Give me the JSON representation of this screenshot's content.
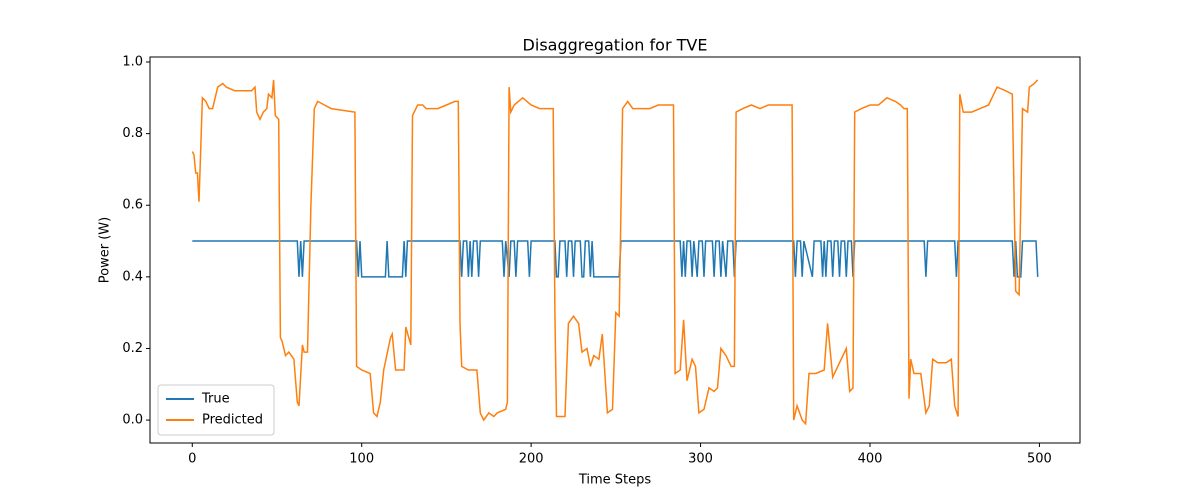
{
  "chart_data": {
    "type": "line",
    "title": "Disaggregation for TVE",
    "x_label": "Time Steps",
    "y_label": "Power (W)",
    "xlim": [
      -24.95,
      523.95
    ],
    "ylim": [
      -0.064,
      1.014
    ],
    "xticks": [
      0,
      100,
      200,
      300,
      400,
      500
    ],
    "yticks": [
      {
        "value": 0,
        "label": "0.0"
      },
      0.2,
      0.4,
      0.6,
      0.8,
      {
        "value": 1,
        "label": "1.0"
      }
    ],
    "legend_position": "lower left",
    "series": [
      {
        "name": "True",
        "color": "#1f77b4",
        "x": [
          0,
          62,
          63,
          64,
          65,
          66,
          97,
          98,
          99,
          100,
          114,
          115,
          116,
          124,
          125,
          126,
          127,
          158,
          159,
          160,
          162,
          163,
          164,
          165,
          166,
          168,
          169,
          170,
          183,
          184,
          185,
          187,
          188,
          190,
          191,
          192,
          198,
          199,
          200,
          214,
          215,
          216,
          217,
          220,
          221,
          222,
          224,
          225,
          226,
          229,
          230,
          231,
          232,
          234,
          235,
          236,
          237,
          252,
          253,
          288,
          289,
          290,
          291,
          292,
          294,
          295,
          296,
          298,
          299,
          301,
          302,
          303,
          307,
          308,
          309,
          311,
          312,
          313,
          315,
          316,
          319,
          320,
          321,
          355,
          356,
          357,
          359,
          360,
          361,
          366,
          367,
          371,
          372,
          373,
          374,
          375,
          377,
          378,
          379,
          381,
          382,
          383,
          385,
          386,
          387,
          389,
          390,
          391,
          432,
          433,
          434,
          450,
          451,
          452,
          484,
          485,
          486,
          487,
          489,
          490,
          498,
          499
        ],
        "values": [
          0.5,
          0.5,
          0.4,
          0.5,
          0.4,
          0.5,
          0.5,
          0.4,
          0.5,
          0.4,
          0.4,
          0.5,
          0.4,
          0.4,
          0.5,
          0.4,
          0.5,
          0.5,
          0.4,
          0.5,
          0.5,
          0.4,
          0.5,
          0.4,
          0.5,
          0.5,
          0.4,
          0.5,
          0.5,
          0.4,
          0.5,
          0.4,
          0.5,
          0.5,
          0.4,
          0.5,
          0.5,
          0.4,
          0.5,
          0.5,
          0.4,
          0.4,
          0.5,
          0.5,
          0.4,
          0.5,
          0.5,
          0.4,
          0.5,
          0.5,
          0.4,
          0.4,
          0.5,
          0.5,
          0.4,
          0.5,
          0.4,
          0.4,
          0.5,
          0.5,
          0.4,
          0.5,
          0.4,
          0.5,
          0.5,
          0.4,
          0.5,
          0.4,
          0.5,
          0.5,
          0.4,
          0.5,
          0.5,
          0.4,
          0.5,
          0.5,
          0.4,
          0.5,
          0.4,
          0.5,
          0.5,
          0.4,
          0.5,
          0.5,
          0.4,
          0.5,
          0.5,
          0.4,
          0.5,
          0.4,
          0.5,
          0.5,
          0.4,
          0.5,
          0.4,
          0.5,
          0.5,
          0.4,
          0.5,
          0.5,
          0.4,
          0.5,
          0.5,
          0.4,
          0.5,
          0.5,
          0.4,
          0.5,
          0.5,
          0.4,
          0.5,
          0.5,
          0.4,
          0.5,
          0.5,
          0.4,
          0.5,
          0.4,
          0.4,
          0.5,
          0.5,
          0.4
        ]
      },
      {
        "name": "Predicted",
        "color": "#ff7f0e",
        "x": [
          0,
          1,
          2,
          3,
          4,
          6,
          8,
          10,
          12,
          15,
          18,
          20,
          25,
          30,
          35,
          37,
          38,
          40,
          42,
          44,
          45,
          47,
          48,
          49,
          51,
          52,
          53,
          55,
          57,
          60,
          62,
          63,
          65,
          66,
          68,
          70,
          72,
          74,
          78,
          82,
          96,
          97,
          100,
          105,
          107,
          109,
          111,
          113,
          117,
          118,
          120,
          125,
          126,
          129,
          130,
          133,
          136,
          138,
          145,
          150,
          155,
          157,
          158,
          159,
          163,
          168,
          170,
          172,
          175,
          178,
          180,
          185,
          186,
          187,
          188,
          190,
          195,
          200,
          205,
          213,
          214,
          215,
          220,
          222,
          225,
          228,
          230,
          233,
          235,
          237,
          240,
          242,
          245,
          248,
          250,
          252,
          254,
          257,
          260,
          270,
          275,
          284,
          285,
          288,
          290,
          292,
          295,
          297,
          299,
          302,
          305,
          308,
          310,
          312,
          315,
          318,
          320,
          321,
          325,
          330,
          335,
          340,
          345,
          354,
          355,
          357,
          360,
          362,
          364,
          368,
          373,
          375,
          378,
          382,
          386,
          388,
          390,
          391,
          395,
          400,
          405,
          410,
          415,
          418,
          420,
          422,
          423,
          424,
          426,
          430,
          433,
          435,
          437,
          440,
          445,
          448,
          450,
          452,
          453,
          455,
          460,
          465,
          470,
          475,
          480,
          484,
          486,
          488,
          490,
          493,
          494,
          497,
          499
        ],
        "values": [
          0.75,
          0.74,
          0.69,
          0.69,
          0.61,
          0.9,
          0.89,
          0.87,
          0.87,
          0.93,
          0.94,
          0.93,
          0.92,
          0.92,
          0.92,
          0.93,
          0.86,
          0.84,
          0.86,
          0.87,
          0.91,
          0.9,
          0.95,
          0.85,
          0.84,
          0.23,
          0.22,
          0.18,
          0.19,
          0.17,
          0.05,
          0.04,
          0.21,
          0.19,
          0.19,
          0.6,
          0.87,
          0.89,
          0.88,
          0.87,
          0.86,
          0.15,
          0.14,
          0.13,
          0.02,
          0.01,
          0.05,
          0.14,
          0.23,
          0.24,
          0.14,
          0.14,
          0.26,
          0.21,
          0.85,
          0.88,
          0.88,
          0.87,
          0.87,
          0.88,
          0.89,
          0.89,
          0.27,
          0.15,
          0.14,
          0.14,
          0.02,
          0.0,
          0.02,
          0.01,
          0.02,
          0.03,
          0.05,
          0.93,
          0.86,
          0.88,
          0.9,
          0.88,
          0.87,
          0.87,
          0.3,
          0.01,
          0.01,
          0.27,
          0.29,
          0.27,
          0.19,
          0.2,
          0.15,
          0.18,
          0.17,
          0.24,
          0.02,
          0.03,
          0.3,
          0.29,
          0.87,
          0.89,
          0.87,
          0.87,
          0.88,
          0.88,
          0.13,
          0.14,
          0.28,
          0.11,
          0.17,
          0.15,
          0.02,
          0.03,
          0.09,
          0.08,
          0.09,
          0.2,
          0.18,
          0.15,
          0.15,
          0.86,
          0.87,
          0.88,
          0.87,
          0.88,
          0.88,
          0.88,
          0.0,
          0.04,
          0.0,
          -0.01,
          0.13,
          0.13,
          0.14,
          0.27,
          0.12,
          0.16,
          0.2,
          0.08,
          0.09,
          0.86,
          0.87,
          0.88,
          0.88,
          0.9,
          0.89,
          0.88,
          0.87,
          0.87,
          0.06,
          0.17,
          0.13,
          0.13,
          0.02,
          0.04,
          0.17,
          0.16,
          0.16,
          0.17,
          0.04,
          0.01,
          0.91,
          0.86,
          0.86,
          0.87,
          0.88,
          0.93,
          0.92,
          0.91,
          0.36,
          0.35,
          0.87,
          0.86,
          0.93,
          0.94,
          0.95
        ]
      }
    ]
  }
}
